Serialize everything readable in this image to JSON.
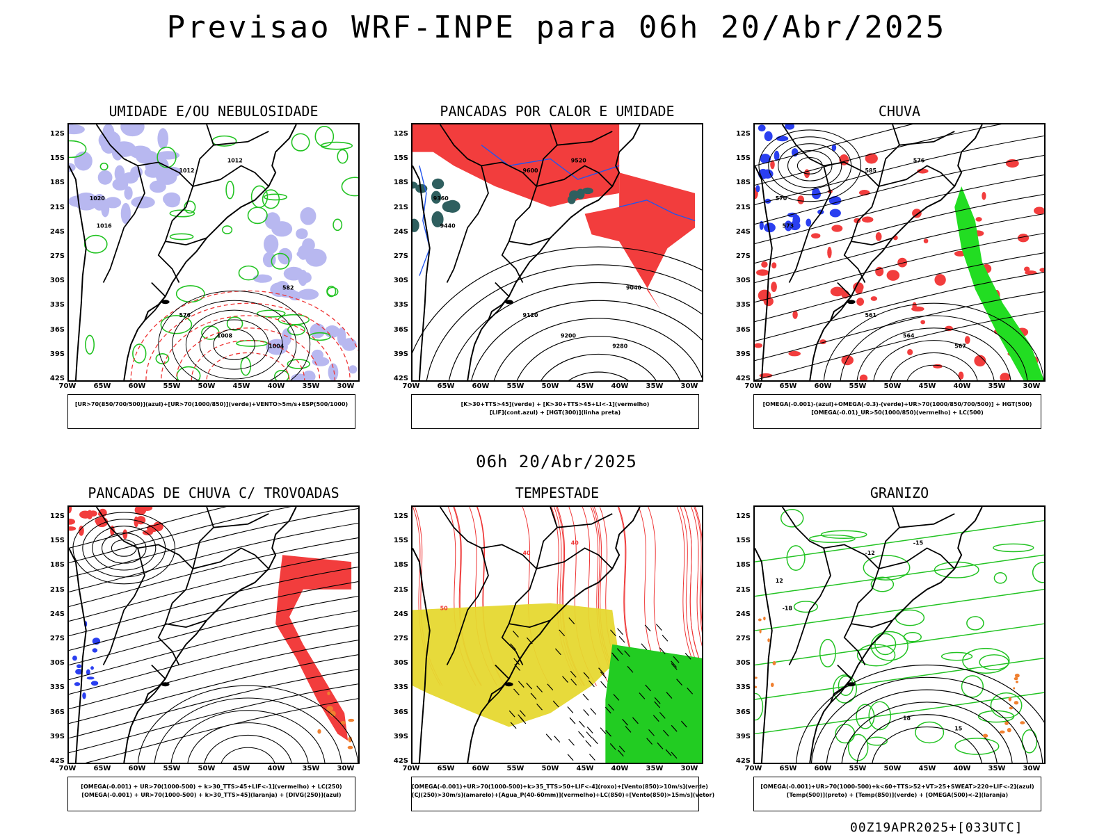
{
  "header": {
    "title": "Previsao WRF-INPE  para 06h 20/Abr/2025",
    "subtitle": "06h 20/Abr/2025",
    "footer": "00Z19APR2025+[033UTC]"
  },
  "axes": {
    "lat_labels": [
      "12S",
      "15S",
      "18S",
      "21S",
      "24S",
      "27S",
      "30S",
      "33S",
      "36S",
      "39S",
      "42S"
    ],
    "lon_labels": [
      "70W",
      "65W",
      "60W",
      "55W",
      "50W",
      "45W",
      "40W",
      "35W",
      "30W"
    ]
  },
  "panels": [
    {
      "id": "umidade",
      "title": "UMIDADE E/OU NEBULOSIDADE",
      "legend": [
        "[UR>70(850/700/500)](azul)+[UR>70(1000/850)](verde)+VENTO>5m/s+ESP(500/1000)"
      ],
      "contour_labels": [
        "1012",
        "1012",
        "1016",
        "1020",
        "1004",
        "1008",
        "576",
        "582"
      ]
    },
    {
      "id": "pancadas-calor",
      "title": "PANCADAS POR CALOR E UMIDADE",
      "legend": [
        "[K>30+TTS>45](verde) + [K>30+TTS>45+LI<-1](vermelho)",
        "[LIF](cont.azul) + [HGT(300)](linha preta)"
      ],
      "contour_labels": [
        "9600",
        "9520",
        "9440",
        "9360",
        "9280",
        "9200",
        "9120",
        "9040"
      ]
    },
    {
      "id": "chuva",
      "title": "CHUVA",
      "legend": [
        "[OMEGA(-0.001)-(azul)+OMEGA(-0.3)-(verde)+UR>70(1000/850/700/500)] + HGT(500)",
        "[OMEGA(-0.01)_UR>50(1000/850)(vermelho) + LC(500)"
      ],
      "contour_labels": [
        "585",
        "576",
        "573",
        "570",
        "567",
        "564",
        "561"
      ]
    },
    {
      "id": "trovoadas",
      "title": "PANCADAS DE CHUVA C/ TROVOADAS",
      "legend": [
        "[OMEGA(-0.001) + UR>70(1000-500) + k>30_TTS>45+LIF<-1](vermelho) + LC(250)",
        "[OMEGA(-0.001) + UR>70(1000-500) + k>30_TTS>45](laranja) + [DIVG(250)](azul)"
      ],
      "contour_labels": []
    },
    {
      "id": "tempestade",
      "title": "TEMPESTADE",
      "legend": [
        "[OMEGA(-0.001)+UR>70(1000-500)+k>35_TTS>50+LIF<-4](roxo)+[Vento(850)>10m/s](verde)",
        "[CJ(250)>30m/s](amarelo)+[Agua_P(40-60mm)](vermelho)+LC(850)+[Vento(850)>15m/s](vetor)"
      ],
      "contour_labels": [
        "40",
        "40",
        "50"
      ]
    },
    {
      "id": "granizo",
      "title": "GRANIZO",
      "legend": [
        "[OMEGA(-0.001)+UR>70(1000-500)+k<60+TTS>52+VT>25+SWEAT>220+LIF<-2](azul)",
        "[Temp(500)](preto) + [Temp(850)](verde) + [OMEGA(500)<-2](laranja)"
      ],
      "contour_labels": [
        "-12",
        "-15",
        "-18",
        "12",
        "15",
        "18"
      ]
    }
  ]
}
